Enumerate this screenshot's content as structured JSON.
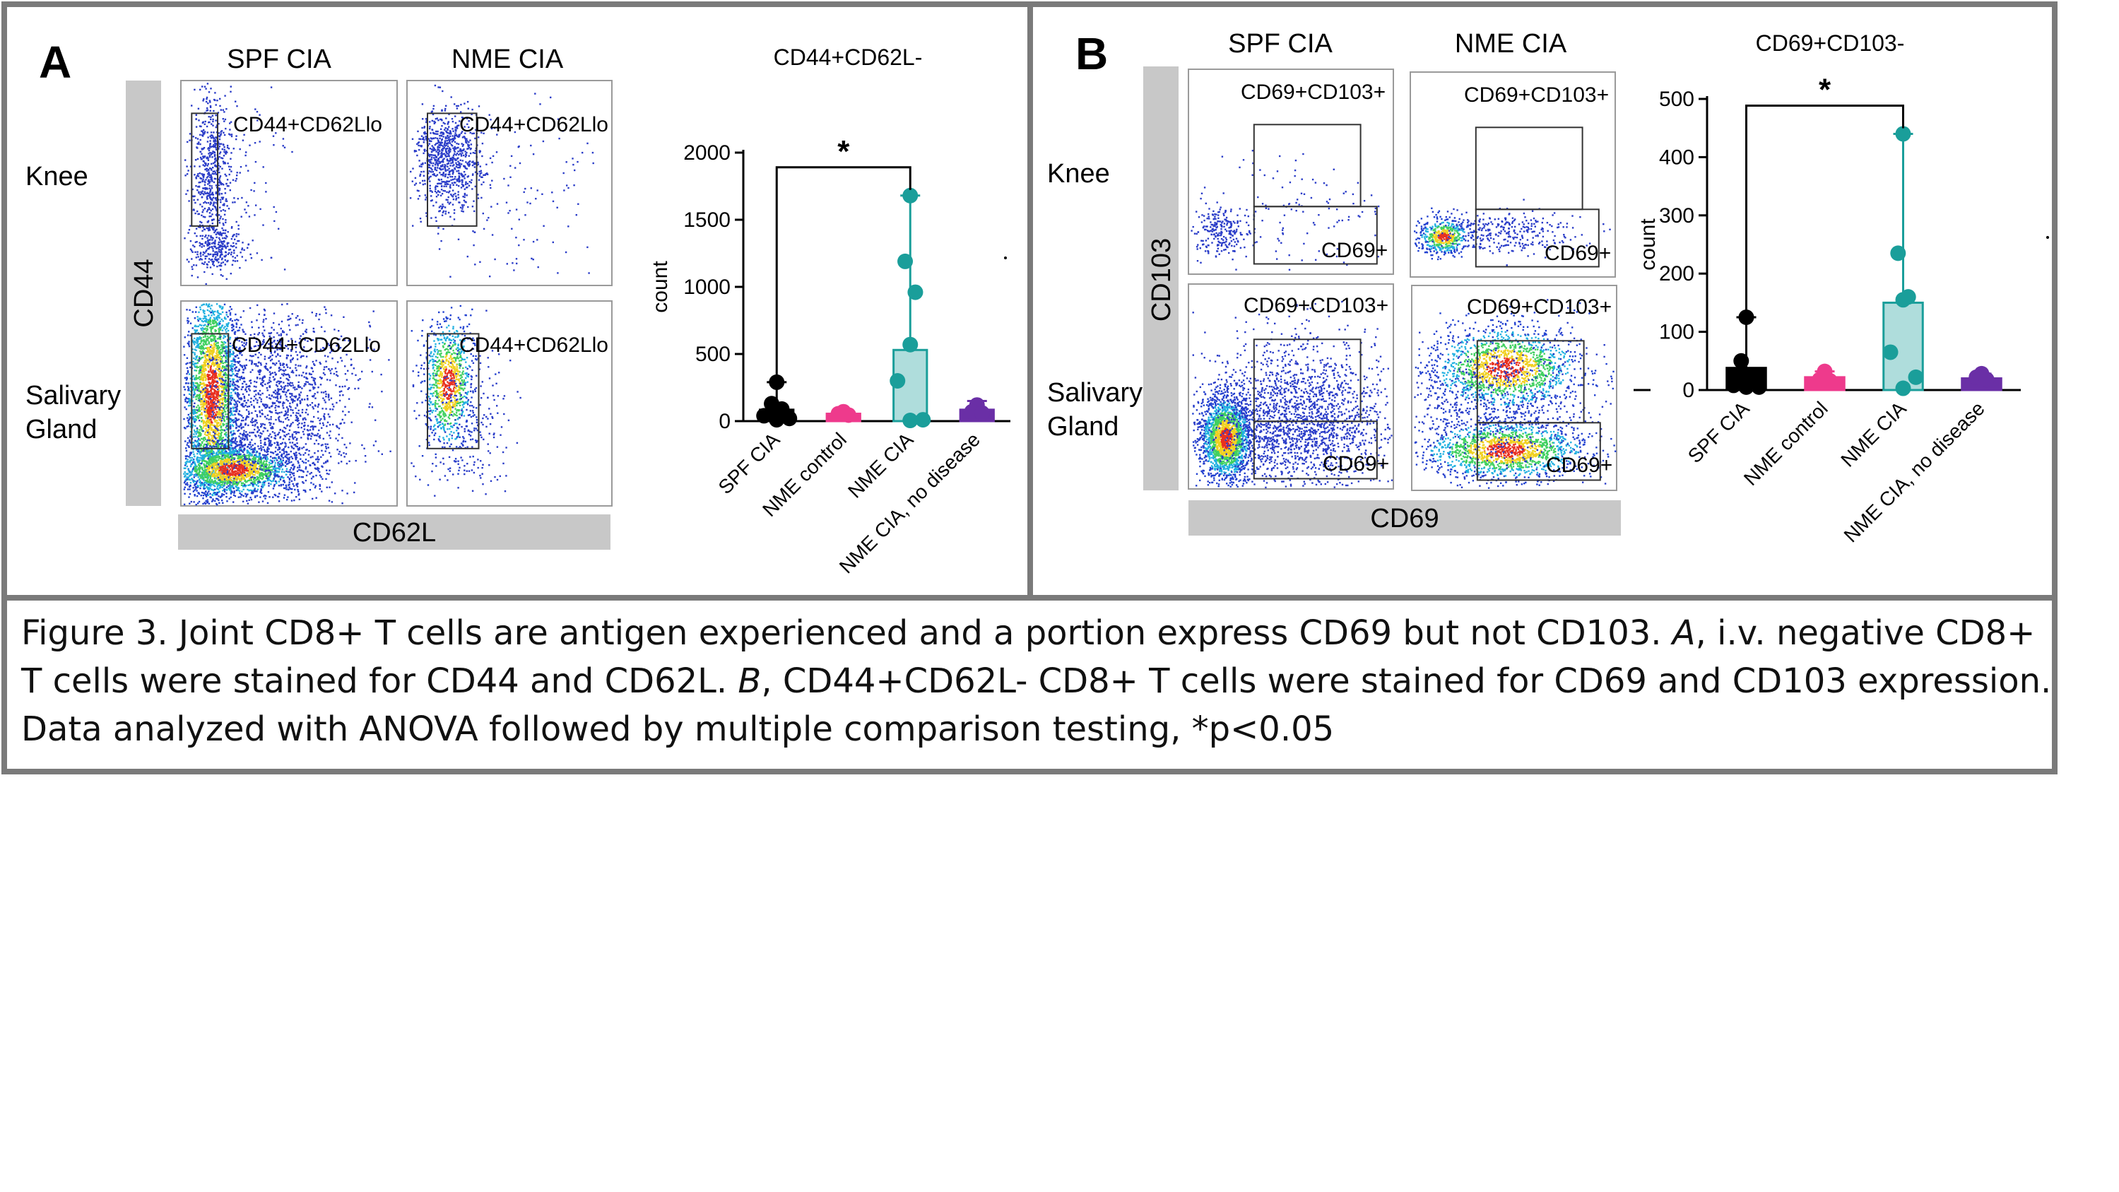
{
  "figure": {
    "panel_a": {
      "letter": "A",
      "col_headers": [
        "SPF CIA",
        "NME CIA"
      ],
      "row_labels": {
        "knee": "Knee",
        "salivary": [
          "Salivary",
          "Gland"
        ]
      },
      "y_axis_marker": "CD44",
      "x_axis_marker": "CD62L",
      "gate_label": "CD44+CD62Llo"
    },
    "panel_b": {
      "letter": "B",
      "col_headers": [
        "SPF CIA",
        "NME CIA"
      ],
      "row_labels": {
        "knee": "Knee",
        "salivary": [
          "Salivary",
          "Gland"
        ]
      },
      "y_axis_marker": "CD103",
      "x_axis_marker": "CD69",
      "gate_top_label": "CD69+CD103+",
      "gate_bottom_label": "CD69+"
    },
    "caption": {
      "lead": "Figure 3. Joint CD8+ T cells are antigen experienced and a portion express CD69 but not CD103. ",
      "a_letter": "A",
      "a_text": ", i.v. negative CD8+ T cells were stained for CD44 and CD62L. ",
      "b_letter": "B",
      "b_text": ", CD44+CD62L- CD8+ T cells were stained for CD69 and CD103 expression. Data analyzed with ANOVA followed by multiple comparison testing, *p<0.05"
    },
    "colors": {
      "border": "#7a7a7a",
      "axis_bar": "#c8c8c8",
      "spf_cia": "#000000",
      "nme_control": "#ee3a8c",
      "nme_cia": "#1a9e9a",
      "nme_cia_no_disease": "#6a2fa6"
    }
  },
  "chart_data": [
    {
      "type": "bar",
      "title": "CD44+CD62L-",
      "ylabel": "count",
      "xlabel": "",
      "ylim": [
        0,
        2000
      ],
      "yticks": [
        0,
        500,
        1000,
        1500,
        2000
      ],
      "categories": [
        "SPF CIA",
        "NME control",
        "NME CIA",
        "NME CIA, no disease"
      ],
      "values": [
        85,
        55,
        530,
        85
      ],
      "error_high": [
        290,
        80,
        1680,
        150
      ],
      "points": [
        [
          290,
          130,
          90,
          60,
          40,
          20,
          10
        ],
        [
          70,
          55,
          45
        ],
        [
          1680,
          1190,
          960,
          570,
          300,
          10,
          5
        ],
        [
          120,
          70,
          60
        ]
      ],
      "significance": {
        "from": 0,
        "to": 2,
        "label": "*"
      },
      "legend": "none",
      "grid": false
    },
    {
      "type": "bar",
      "title": "CD69+CD103-",
      "ylabel": "count",
      "xlabel": "",
      "ylim": [
        0,
        500
      ],
      "yticks": [
        0,
        100,
        200,
        300,
        400,
        500
      ],
      "categories": [
        "SPF CIA",
        "NME control",
        "NME CIA",
        "NME CIA, no disease"
      ],
      "values": [
        38,
        22,
        150,
        20
      ],
      "error_high": [
        125,
        32,
        440,
        28
      ],
      "points": [
        [
          125,
          50,
          20,
          10,
          8,
          5,
          5
        ],
        [
          32,
          18,
          16
        ],
        [
          440,
          235,
          160,
          155,
          65,
          22,
          3
        ],
        [
          28,
          22,
          18
        ]
      ],
      "significance": {
        "from": 0,
        "to": 2,
        "label": "*"
      },
      "legend": "none",
      "grid": false
    }
  ]
}
